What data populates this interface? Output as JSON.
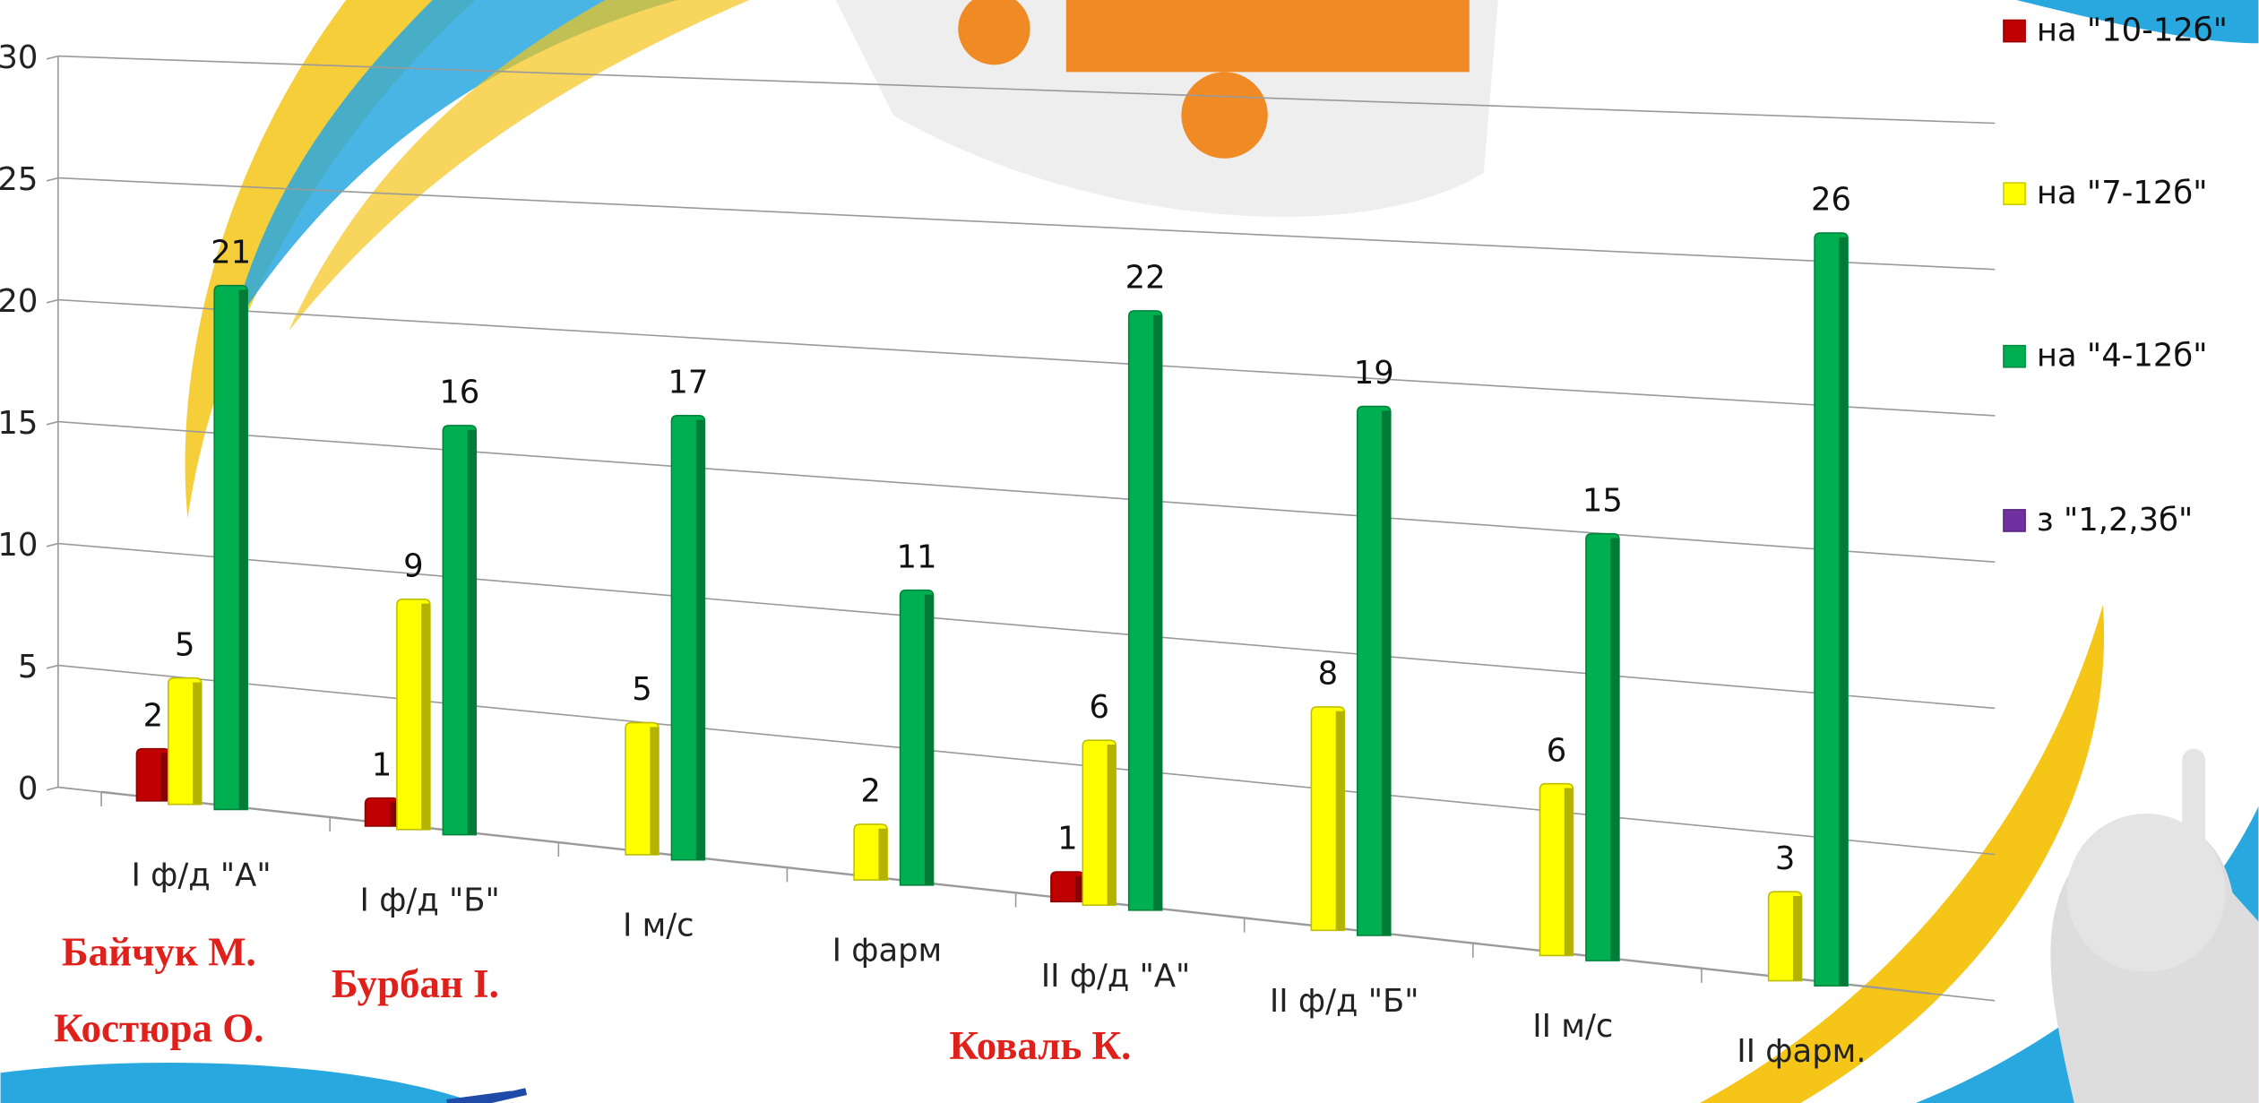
{
  "chart_data": {
    "type": "bar3d",
    "categories": [
      "I ф/д \"А\"",
      "I ф/д \"Б\"",
      "I м/с",
      "I фарм",
      "II  ф/д \"А\"",
      "II  ф/д \"Б\"",
      "II м/с",
      "II фарм."
    ],
    "series": [
      {
        "name": "на \"10-12б\"",
        "color": "#c00000",
        "values": [
          2,
          1,
          null,
          null,
          1,
          null,
          null,
          null
        ]
      },
      {
        "name": "на \"7-12б\"",
        "color": "#ffff00",
        "values": [
          5,
          9,
          5,
          2,
          6,
          8,
          6,
          3
        ]
      },
      {
        "name": "на \"4-12б\"",
        "color": "#00b050",
        "values": [
          21,
          16,
          17,
          11,
          22,
          19,
          15,
          26
        ]
      },
      {
        "name": "з \"1,2,3б\"",
        "color": "#7030a0",
        "values": [
          null,
          null,
          null,
          null,
          null,
          null,
          null,
          null
        ]
      }
    ],
    "ylim": [
      0,
      30
    ],
    "yticks": [
      0,
      5,
      10,
      15,
      20,
      25,
      30
    ],
    "grid": true,
    "legend": "right",
    "annotations": [
      "Байчук М.",
      "Костюра О.",
      "Бурбан І.",
      "Коваль К."
    ]
  }
}
